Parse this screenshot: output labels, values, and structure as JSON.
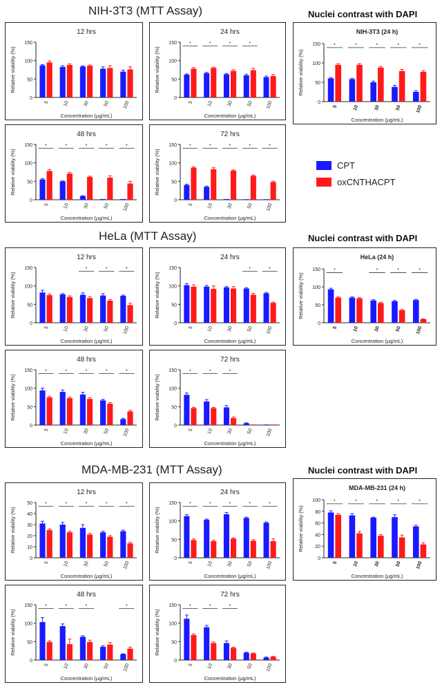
{
  "headings": {
    "nih": "NIH-3T3 (MTT Assay)",
    "hela": "HeLa (MTT Assay)",
    "mda": "MDA-MB-231 (MTT Assay)",
    "dapi1": "Nuclei contrast with DAPI",
    "dapi2": "Nuclei contrast with DAPI",
    "dapi3": "Nuclei contrast with DAPI"
  },
  "legend": [
    {
      "name": "CPT",
      "color": "#1a1aff"
    },
    {
      "name": "oxCNTHACPT",
      "color": "#ff1a1a"
    }
  ],
  "colors": {
    "cpt": "#1a1aff",
    "ox": "#ff1a1a"
  },
  "chart_data": [
    {
      "id": "nih-12",
      "type": "bar",
      "title": "12 hrs",
      "xlabel": "Concentration (μg/mL)",
      "ylabel": "Relative viability (%)",
      "ylim": [
        0,
        150
      ],
      "yticks": [
        0,
        50,
        100,
        150
      ],
      "categories": [
        "5",
        "10",
        "30",
        "50",
        "100"
      ],
      "series": [
        {
          "name": "CPT",
          "values": [
            87,
            83,
            84,
            78,
            70
          ],
          "err": [
            2,
            3,
            2,
            5,
            4
          ]
        },
        {
          "name": "oxCNTHACPT",
          "values": [
            95,
            88,
            86,
            80,
            76
          ],
          "err": [
            4,
            3,
            2,
            6,
            7
          ]
        }
      ],
      "sig": []
    },
    {
      "id": "nih-24",
      "type": "bar",
      "title": "24 hrs",
      "xlabel": "Concentration (μg/mL)",
      "ylabel": "Relative viability (%)",
      "ylim": [
        0,
        150
      ],
      "yticks": [
        0,
        50,
        100,
        150
      ],
      "categories": [
        "5",
        "10",
        "30",
        "50",
        "100"
      ],
      "series": [
        {
          "name": "CPT",
          "values": [
            62,
            66,
            63,
            60,
            55
          ],
          "err": [
            2,
            2,
            2,
            3,
            3
          ]
        },
        {
          "name": "oxCNTHACPT",
          "values": [
            78,
            80,
            72,
            74,
            58
          ],
          "err": [
            3,
            2,
            3,
            5,
            4
          ]
        }
      ],
      "sig": [
        0,
        1,
        2,
        3
      ]
    },
    {
      "id": "nih-dapi",
      "type": "bar",
      "title": "NIH-3T3 (24 h)",
      "xlabel": "Concentration (μg/mL)",
      "ylabel": "Relative viability (%)",
      "ylim": [
        0,
        150
      ],
      "yticks": [
        0,
        50,
        100,
        150
      ],
      "categories": [
        "5",
        "10",
        "30",
        "50",
        "100"
      ],
      "series": [
        {
          "name": "CPT",
          "values": [
            60,
            58,
            50,
            38,
            25
          ],
          "err": [
            2,
            2,
            3,
            4,
            3
          ]
        },
        {
          "name": "oxCNTHACPT",
          "values": [
            95,
            95,
            88,
            79,
            77
          ],
          "err": [
            3,
            3,
            3,
            4,
            3
          ]
        }
      ],
      "sig": [
        0,
        1,
        2,
        3,
        4
      ]
    },
    {
      "id": "nih-48",
      "type": "bar",
      "title": "48 hrs",
      "xlabel": "Concentration (μg/mL)",
      "ylabel": "Relative viability (%)",
      "ylim": [
        0,
        150
      ],
      "yticks": [
        0,
        50,
        100,
        150
      ],
      "categories": [
        "5",
        "10",
        "30",
        "50",
        "100"
      ],
      "series": [
        {
          "name": "CPT",
          "values": [
            55,
            50,
            10,
            2,
            2
          ],
          "err": [
            2,
            1,
            1,
            0,
            0
          ]
        },
        {
          "name": "oxCNTHACPT",
          "values": [
            78,
            71,
            62,
            60,
            44
          ],
          "err": [
            4,
            3,
            2,
            5,
            6
          ]
        }
      ],
      "sig": [
        0,
        1,
        2,
        3,
        4
      ]
    },
    {
      "id": "nih-72",
      "type": "bar",
      "title": "72 hrs",
      "xlabel": "Concentration (μg/mL)",
      "ylabel": "Relative viability (%)",
      "ylim": [
        0,
        150
      ],
      "yticks": [
        0,
        50,
        100,
        150
      ],
      "categories": [
        "5",
        "10",
        "30",
        "50",
        "100"
      ],
      "series": [
        {
          "name": "CPT",
          "values": [
            40,
            35,
            2,
            1,
            1
          ],
          "err": [
            2,
            2,
            0,
            0,
            0
          ]
        },
        {
          "name": "oxCNTHACPT",
          "values": [
            87,
            83,
            79,
            65,
            48
          ],
          "err": [
            2,
            4,
            2,
            2,
            2
          ]
        }
      ],
      "sig": [
        0,
        1,
        2,
        3,
        4
      ]
    },
    {
      "id": "hela-12",
      "type": "bar",
      "title": "12 hrs",
      "xlabel": "Concentration (μg/mL)",
      "ylabel": "Relative viability (%)",
      "ylim": [
        0,
        150
      ],
      "yticks": [
        0,
        50,
        100,
        150
      ],
      "categories": [
        "5",
        "10",
        "30",
        "50",
        "100"
      ],
      "series": [
        {
          "name": "CPT",
          "values": [
            82,
            77,
            76,
            74,
            73
          ],
          "err": [
            6,
            2,
            5,
            5,
            2
          ]
        },
        {
          "name": "oxCNTHACPT",
          "values": [
            75,
            70,
            67,
            60,
            48
          ],
          "err": [
            3,
            3,
            4,
            3,
            5
          ]
        }
      ],
      "sig": [
        2,
        3,
        4
      ]
    },
    {
      "id": "hela-24",
      "type": "bar",
      "title": "24 hrs",
      "xlabel": "Concentration (μg/mL)",
      "ylabel": "Relative viability (%)",
      "ylim": [
        0,
        150
      ],
      "yticks": [
        0,
        50,
        100,
        150
      ],
      "categories": [
        "5",
        "10",
        "30",
        "50",
        "100"
      ],
      "series": [
        {
          "name": "CPT",
          "values": [
            102,
            98,
            96,
            93,
            80
          ],
          "err": [
            4,
            3,
            2,
            2,
            2
          ]
        },
        {
          "name": "oxCNTHACPT",
          "values": [
            98,
            92,
            93,
            76,
            54
          ],
          "err": [
            5,
            8,
            5,
            4,
            2
          ]
        }
      ],
      "sig": [
        3,
        4
      ]
    },
    {
      "id": "hela-dapi",
      "type": "bar",
      "title": "HeLa (24 h)",
      "xlabel": "Concentration (μg/mL)",
      "ylabel": "Relative viability (%)",
      "ylim": [
        0,
        150
      ],
      "yticks": [
        0,
        50,
        100,
        150
      ],
      "categories": [
        "5",
        "10",
        "30",
        "50",
        "100"
      ],
      "series": [
        {
          "name": "CPT",
          "values": [
            93,
            70,
            62,
            60,
            63
          ],
          "err": [
            3,
            2,
            2,
            2,
            2
          ]
        },
        {
          "name": "oxCNTHACPT",
          "values": [
            70,
            68,
            55,
            35,
            10
          ],
          "err": [
            2,
            2,
            2,
            2,
            1
          ]
        }
      ],
      "sig": [
        0,
        2,
        3,
        4
      ]
    },
    {
      "id": "hela-48",
      "type": "bar",
      "title": "48 hrs",
      "xlabel": "Concentration (μg/mL)",
      "ylabel": "Relative viability (%)",
      "ylim": [
        0,
        150
      ],
      "yticks": [
        0,
        50,
        100,
        150
      ],
      "categories": [
        "5",
        "10",
        "30",
        "50",
        "100"
      ],
      "series": [
        {
          "name": "CPT",
          "values": [
            94,
            90,
            83,
            67,
            16
          ],
          "err": [
            6,
            5,
            6,
            3,
            2
          ]
        },
        {
          "name": "oxCNTHACPT",
          "values": [
            75,
            73,
            71,
            58,
            37
          ],
          "err": [
            3,
            3,
            3,
            3,
            3
          ]
        }
      ],
      "sig": [
        0,
        1,
        2,
        3,
        4
      ]
    },
    {
      "id": "hela-72",
      "type": "bar",
      "title": "72 hrs",
      "xlabel": "Concentration (μg/mL)",
      "ylabel": "Relative viability (%)",
      "ylim": [
        0,
        150
      ],
      "yticks": [
        0,
        50,
        100,
        150
      ],
      "categories": [
        "5",
        "10",
        "30",
        "50",
        "100"
      ],
      "series": [
        {
          "name": "CPT",
          "values": [
            82,
            64,
            48,
            5,
            1
          ],
          "err": [
            5,
            5,
            5,
            1,
            0
          ]
        },
        {
          "name": "oxCNTHACPT",
          "values": [
            46,
            46,
            19,
            1,
            1
          ],
          "err": [
            2,
            2,
            3,
            0,
            0
          ]
        }
      ],
      "sig": [
        0,
        1,
        2
      ]
    },
    {
      "id": "mda-12",
      "type": "bar",
      "title": "12 hrs",
      "xlabel": "Concentration (μg/mL)",
      "ylabel": "Relative viability (%)",
      "ylim": [
        0,
        50
      ],
      "yticks": [
        0,
        10,
        20,
        30,
        40,
        50
      ],
      "categories": [
        "5",
        "10",
        "30",
        "50",
        "100"
      ],
      "series": [
        {
          "name": "CPT",
          "values": [
            31,
            30,
            27,
            23,
            24
          ],
          "err": [
            2,
            2,
            3,
            1,
            1
          ]
        },
        {
          "name": "oxCNTHACPT",
          "values": [
            25,
            23,
            21,
            19,
            13
          ],
          "err": [
            1,
            1,
            1,
            1,
            1
          ]
        }
      ],
      "sig": [
        0,
        1,
        2,
        3,
        4
      ]
    },
    {
      "id": "mda-24",
      "type": "bar",
      "title": "24 hrs",
      "xlabel": "Concentration (μg/mL)",
      "ylabel": "Relative viability (%)",
      "ylim": [
        0,
        150
      ],
      "yticks": [
        0,
        50,
        100,
        150
      ],
      "categories": [
        "5",
        "10",
        "30",
        "50",
        "100"
      ],
      "series": [
        {
          "name": "CPT",
          "values": [
            113,
            103,
            118,
            108,
            95
          ],
          "err": [
            4,
            2,
            5,
            2,
            2
          ]
        },
        {
          "name": "oxCNTHACPT",
          "values": [
            48,
            45,
            52,
            46,
            45
          ],
          "err": [
            3,
            3,
            2,
            3,
            6
          ]
        }
      ],
      "sig": [
        0,
        1,
        2,
        3,
        4
      ]
    },
    {
      "id": "mda-dapi",
      "type": "bar",
      "title": "MDA-MB-231 (24 h)",
      "xlabel": "Concentration (μg/mL)",
      "ylabel": "Relative viability (%)",
      "ylim": [
        0,
        100
      ],
      "yticks": [
        0,
        20,
        40,
        60,
        80,
        100
      ],
      "categories": [
        "5",
        "10",
        "30",
        "50",
        "100"
      ],
      "series": [
        {
          "name": "CPT",
          "values": [
            78,
            73,
            69,
            70,
            54
          ],
          "err": [
            3,
            3,
            1,
            4,
            2
          ]
        },
        {
          "name": "oxCNTHACPT",
          "values": [
            74,
            42,
            38,
            35,
            23
          ],
          "err": [
            2,
            3,
            2,
            4,
            3
          ]
        }
      ],
      "sig": [
        0,
        1,
        2,
        3,
        4
      ]
    },
    {
      "id": "mda-48",
      "type": "bar",
      "title": "48 hrs",
      "xlabel": "Concentration (μg/mL)",
      "ylabel": "Relative viability (%)",
      "ylim": [
        0,
        150
      ],
      "yticks": [
        0,
        50,
        100,
        150
      ],
      "categories": [
        "5",
        "10",
        "30",
        "50",
        "100"
      ],
      "series": [
        {
          "name": "CPT",
          "values": [
            103,
            92,
            63,
            36,
            16
          ],
          "err": [
            12,
            6,
            3,
            3,
            1
          ]
        },
        {
          "name": "oxCNTHACPT",
          "values": [
            49,
            43,
            49,
            42,
            31
          ],
          "err": [
            3,
            14,
            5,
            6,
            4
          ]
        }
      ],
      "sig": [
        0,
        1,
        2,
        4
      ]
    },
    {
      "id": "mda-72",
      "type": "bar",
      "title": "72 hrs",
      "xlabel": "Concentration (μg/mL)",
      "ylabel": "Relative viability (%)",
      "ylim": [
        0,
        150
      ],
      "yticks": [
        0,
        50,
        100,
        150
      ],
      "categories": [
        "5",
        "10",
        "30",
        "50",
        "100"
      ],
      "series": [
        {
          "name": "CPT",
          "values": [
            112,
            89,
            46,
            20,
            7
          ],
          "err": [
            10,
            5,
            6,
            1,
            1
          ]
        },
        {
          "name": "oxCNTHACPT",
          "values": [
            68,
            46,
            33,
            18,
            9
          ],
          "err": [
            3,
            3,
            2,
            1,
            1
          ]
        }
      ],
      "sig": [
        0,
        1,
        2
      ]
    }
  ]
}
